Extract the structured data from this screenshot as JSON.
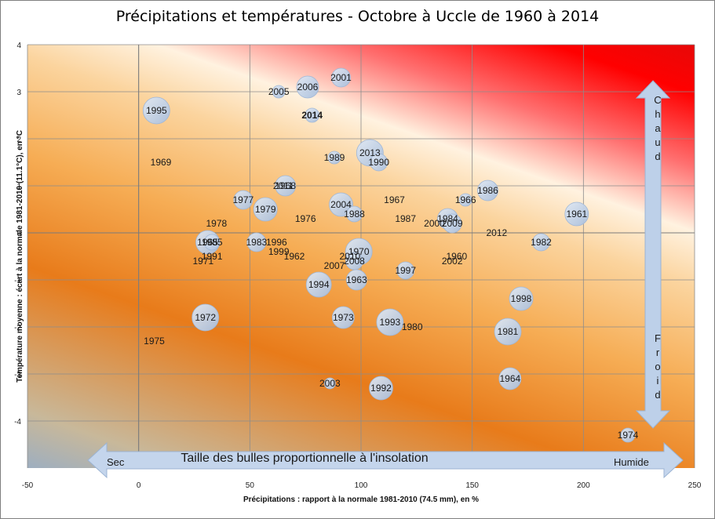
{
  "chart_data": {
    "type": "bubble",
    "title": "Précipitations et températures - Octobre à Uccle de 1960 à 2014",
    "xlabel": "Précipitations : rapport à la normale 1981-2010 (74.5 mm), en %",
    "ylabel": "Température moyenne : écart à la normale 1981-2010 (11.1°C), en °C",
    "xlim": [
      -50,
      250
    ],
    "ylim": [
      -5,
      4
    ],
    "xticks": [
      "-50",
      "0",
      "50",
      "100",
      "150",
      "200",
      "250"
    ],
    "yticks": [
      "4",
      "3",
      "2",
      "1",
      "0",
      "-1",
      "-2",
      "-3",
      "-4"
    ],
    "grid": true,
    "size_note": "Taille des bulles proportionnelle à l'insolation",
    "arrow_x_left": "Sec",
    "arrow_x_right": "Humide",
    "arrow_y_top": "Chaud",
    "arrow_y_bottom": "Froid",
    "highlight": "2014",
    "highlight_color": "#c00000",
    "bubble_color": "#b8cce4",
    "points": [
      {
        "label": "1995",
        "x": 8,
        "y": 2.6,
        "size": 17
      },
      {
        "label": "1969",
        "x": 10,
        "y": 1.5,
        "size": 0
      },
      {
        "label": "2005",
        "x": 63,
        "y": 3.0,
        "size": 8
      },
      {
        "label": "2006",
        "x": 76,
        "y": 3.1,
        "size": 14
      },
      {
        "label": "2001",
        "x": 91,
        "y": 3.3,
        "size": 12
      },
      {
        "label": "2014",
        "x": 78,
        "y": 2.5,
        "size": 9
      },
      {
        "label": "1989",
        "x": 88,
        "y": 1.6,
        "size": 8
      },
      {
        "label": "2013",
        "x": 104,
        "y": 1.7,
        "size": 17
      },
      {
        "label": "1990",
        "x": 108,
        "y": 1.5,
        "size": 11
      },
      {
        "label": "1968",
        "x": 66,
        "y": 1.0,
        "size": 13
      },
      {
        "label": "2011",
        "x": 65,
        "y": 1.0,
        "size": 0
      },
      {
        "label": "1977",
        "x": 47,
        "y": 0.7,
        "size": 12
      },
      {
        "label": "1979",
        "x": 57,
        "y": 0.5,
        "size": 15
      },
      {
        "label": "1976",
        "x": 75,
        "y": 0.3,
        "size": 0
      },
      {
        "label": "2004",
        "x": 91,
        "y": 0.6,
        "size": 15
      },
      {
        "label": "1988",
        "x": 97,
        "y": 0.4,
        "size": 10
      },
      {
        "label": "1967",
        "x": 115,
        "y": 0.7,
        "size": 0
      },
      {
        "label": "1987",
        "x": 120,
        "y": 0.3,
        "size": 0
      },
      {
        "label": "1966",
        "x": 147,
        "y": 0.7,
        "size": 8
      },
      {
        "label": "1986",
        "x": 157,
        "y": 0.9,
        "size": 13
      },
      {
        "label": "1984",
        "x": 139,
        "y": 0.3,
        "size": 13
      },
      {
        "label": "2000",
        "x": 133,
        "y": 0.2,
        "size": 0
      },
      {
        "label": "2009",
        "x": 141,
        "y": 0.2,
        "size": 12
      },
      {
        "label": "2012",
        "x": 161,
        "y": 0.0,
        "size": 0
      },
      {
        "label": "1961",
        "x": 197,
        "y": 0.4,
        "size": 15
      },
      {
        "label": "1982",
        "x": 181,
        "y": -0.2,
        "size": 11
      },
      {
        "label": "1978",
        "x": 35,
        "y": 0.2,
        "size": 0
      },
      {
        "label": "1965",
        "x": 31,
        "y": -0.2,
        "size": 15
      },
      {
        "label": "1985",
        "x": 33,
        "y": -0.2,
        "size": 10
      },
      {
        "label": "1991",
        "x": 33,
        "y": -0.5,
        "size": 0
      },
      {
        "label": "1971",
        "x": 29,
        "y": -0.6,
        "size": 0
      },
      {
        "label": "1983",
        "x": 53,
        "y": -0.2,
        "size": 12
      },
      {
        "label": "1996",
        "x": 62,
        "y": -0.2,
        "size": 0
      },
      {
        "label": "1999",
        "x": 63,
        "y": -0.4,
        "size": 0
      },
      {
        "label": "1962",
        "x": 70,
        "y": -0.5,
        "size": 0
      },
      {
        "label": "2010",
        "x": 95,
        "y": -0.5,
        "size": 0
      },
      {
        "label": "1970",
        "x": 99,
        "y": -0.4,
        "size": 17
      },
      {
        "label": "2008",
        "x": 97,
        "y": -0.6,
        "size": 11
      },
      {
        "label": "2007",
        "x": 88,
        "y": -0.7,
        "size": 0
      },
      {
        "label": "1997",
        "x": 120,
        "y": -0.8,
        "size": 11
      },
      {
        "label": "1960",
        "x": 143,
        "y": -0.5,
        "size": 0
      },
      {
        "label": "2002",
        "x": 141,
        "y": -0.6,
        "size": 0
      },
      {
        "label": "1994",
        "x": 81,
        "y": -1.1,
        "size": 16
      },
      {
        "label": "1963",
        "x": 98,
        "y": -1.0,
        "size": 13
      },
      {
        "label": "1998",
        "x": 172,
        "y": -1.4,
        "size": 15
      },
      {
        "label": "1972",
        "x": 30,
        "y": -1.8,
        "size": 17
      },
      {
        "label": "1973",
        "x": 92,
        "y": -1.8,
        "size": 14
      },
      {
        "label": "1993",
        "x": 113,
        "y": -1.9,
        "size": 17
      },
      {
        "label": "1980",
        "x": 123,
        "y": -2.0,
        "size": 0
      },
      {
        "label": "1981",
        "x": 166,
        "y": -2.1,
        "size": 17
      },
      {
        "label": "1975",
        "x": 7,
        "y": -2.3,
        "size": 0
      },
      {
        "label": "2003",
        "x": 86,
        "y": -3.2,
        "size": 7
      },
      {
        "label": "1992",
        "x": 109,
        "y": -3.3,
        "size": 15
      },
      {
        "label": "1964",
        "x": 167,
        "y": -3.1,
        "size": 14
      },
      {
        "label": "1974",
        "x": 220,
        "y": -4.3,
        "size": 9
      }
    ]
  }
}
